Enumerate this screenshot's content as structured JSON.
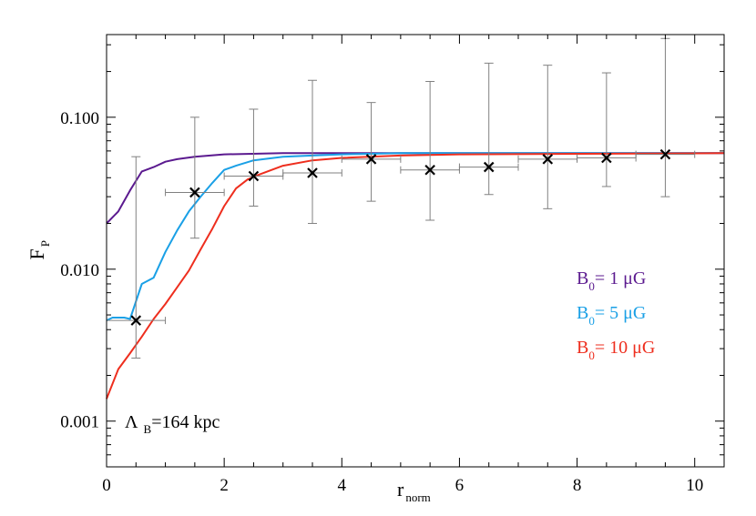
{
  "chart_data": {
    "type": "line",
    "xlabel": {
      "main": "r",
      "sub": "norm"
    },
    "ylabel": {
      "main": "F",
      "sub": "P"
    },
    "xlim": [
      0,
      10.5
    ],
    "ylim": [
      0.0005,
      0.35
    ],
    "yscale": "log",
    "x_ticks": [
      0,
      2,
      4,
      6,
      8,
      10
    ],
    "x_tick_labels": [
      "0",
      "2",
      "4",
      "6",
      "8",
      "10"
    ],
    "y_ticks": [
      0.001,
      0.01,
      0.1
    ],
    "y_tick_labels": [
      "0.001",
      "0.010",
      "0.100"
    ],
    "annotation": {
      "main": "Λ",
      "sub": "B",
      "rest": "=164 kpc"
    },
    "legend_position": "middle-right",
    "series": [
      {
        "name": {
          "pre": "B",
          "sub": "0",
          "post": "= 1 μG"
        },
        "color": "#5b1a8f",
        "x": [
          0,
          0.2,
          0.4,
          0.6,
          0.8,
          1.0,
          1.2,
          1.5,
          2.0,
          3.0,
          4.0,
          6.0,
          10.5
        ],
        "y": [
          0.02,
          0.024,
          0.033,
          0.044,
          0.047,
          0.051,
          0.053,
          0.055,
          0.057,
          0.058,
          0.058,
          0.058,
          0.058
        ]
      },
      {
        "name": {
          "pre": "B",
          "sub": "0",
          "post": "= 5 μG"
        },
        "color": "#1aa0e6",
        "x": [
          0,
          0.1,
          0.2,
          0.3,
          0.4,
          0.6,
          0.8,
          1.0,
          1.2,
          1.4,
          1.6,
          1.8,
          2.0,
          2.2,
          2.5,
          3.0,
          3.5,
          4.0,
          5.0,
          6.0,
          10.5
        ],
        "y": [
          0.0046,
          0.0048,
          0.0048,
          0.0048,
          0.0047,
          0.008,
          0.0088,
          0.013,
          0.018,
          0.024,
          0.03,
          0.037,
          0.045,
          0.048,
          0.052,
          0.055,
          0.056,
          0.057,
          0.058,
          0.058,
          0.058
        ]
      },
      {
        "name": {
          "pre": "B",
          "sub": "0",
          "post": "= 10 μG"
        },
        "color": "#ee2e1e",
        "x": [
          0,
          0.2,
          0.4,
          0.6,
          0.8,
          1.0,
          1.2,
          1.4,
          1.6,
          1.8,
          2.0,
          2.2,
          2.4,
          2.6,
          3.0,
          3.5,
          4.0,
          5.0,
          6.0,
          10.5
        ],
        "y": [
          0.0014,
          0.0022,
          0.0028,
          0.0036,
          0.0047,
          0.0059,
          0.0076,
          0.0098,
          0.0135,
          0.0185,
          0.026,
          0.034,
          0.039,
          0.042,
          0.048,
          0.052,
          0.054,
          0.056,
          0.057,
          0.058
        ]
      }
    ],
    "data_points": {
      "marker": "x",
      "color": "#000000",
      "errorbar_color": "#808080",
      "x": [
        0.5,
        1.5,
        2.5,
        3.5,
        4.5,
        5.5,
        6.5,
        7.5,
        8.5,
        9.5
      ],
      "y": [
        0.0046,
        0.032,
        0.041,
        0.043,
        0.053,
        0.045,
        0.047,
        0.053,
        0.054,
        0.057
      ],
      "x_err": [
        0.5,
        0.5,
        0.5,
        0.5,
        0.5,
        0.5,
        0.5,
        0.5,
        0.5,
        0.5
      ],
      "y_low": [
        0.0026,
        0.016,
        0.026,
        0.02,
        0.028,
        0.021,
        0.031,
        0.025,
        0.035,
        0.03
      ],
      "y_high": [
        0.055,
        0.1,
        0.113,
        0.175,
        0.125,
        0.172,
        0.227,
        0.22,
        0.196,
        0.33
      ]
    }
  }
}
